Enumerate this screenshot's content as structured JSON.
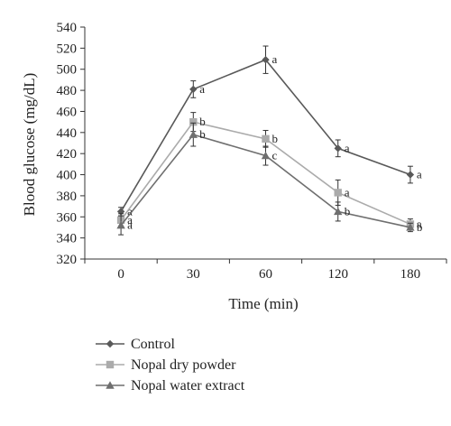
{
  "chart_data": {
    "type": "line",
    "xlabel": "Time (min)",
    "ylabel": "Blood glucose (mg/dL)",
    "categories": [
      "0",
      "30",
      "60",
      "120",
      "180"
    ],
    "ylim": [
      320,
      540
    ],
    "yticks": [
      320,
      340,
      360,
      380,
      400,
      420,
      440,
      460,
      480,
      500,
      520,
      540
    ],
    "grid": false,
    "legend_position": "bottom-left",
    "series": [
      {
        "name": "Control",
        "color": "#595959",
        "marker": "diamond",
        "values": [
          365,
          481,
          509,
          425,
          400
        ],
        "errors": [
          4,
          8,
          13,
          8,
          8
        ],
        "labels": [
          "a",
          "a",
          "a",
          "a",
          "a"
        ]
      },
      {
        "name": "Nopal dry powder",
        "color": "#ababab",
        "marker": "square",
        "values": [
          357,
          450,
          434,
          383,
          353
        ],
        "errors": [
          6,
          9,
          8,
          12,
          5
        ],
        "labels": [
          "a",
          "b",
          "b",
          "a",
          "a"
        ]
      },
      {
        "name": "Nopal water extract",
        "color": "#6f6f6f",
        "marker": "triangle",
        "values": [
          352,
          438,
          418,
          365,
          350
        ],
        "errors": [
          9,
          11,
          9,
          9,
          4
        ],
        "labels": [
          "a",
          "b",
          "c",
          "b",
          "b"
        ]
      }
    ]
  }
}
